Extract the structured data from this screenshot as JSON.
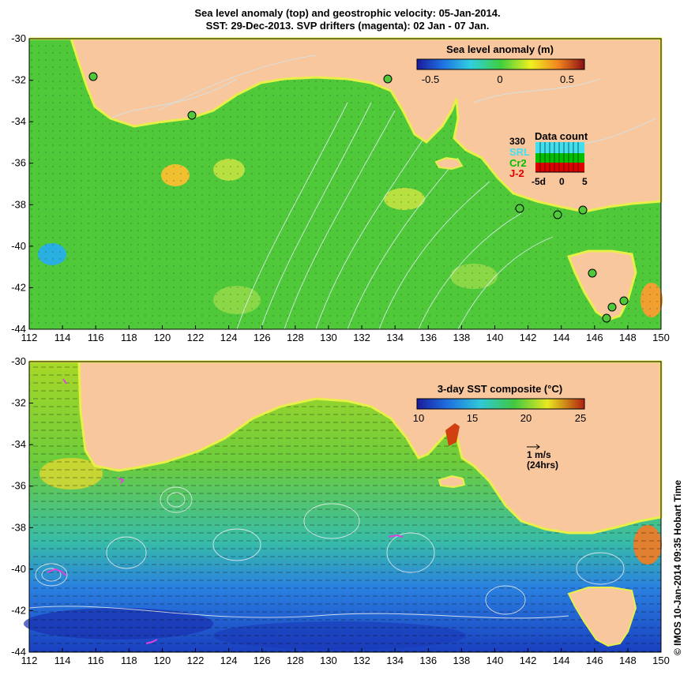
{
  "title": {
    "line1": "Sea level anomaly (top) and geostrophic velocity: 05-Jan-2014.",
    "line2": "SST: 29-Dec-2013. SVP drifters (magenta): 02 Jan - 07 Jan."
  },
  "axes": {
    "longitude_ticks": [
      "112",
      "114",
      "116",
      "118",
      "120",
      "122",
      "124",
      "126",
      "128",
      "130",
      "132",
      "134",
      "136",
      "138",
      "140",
      "142",
      "144",
      "146",
      "148",
      "150"
    ],
    "latitude_ticks": [
      "-30",
      "-32",
      "-34",
      "-36",
      "-38",
      "-40",
      "-42",
      "-44"
    ]
  },
  "top_panel": {
    "colorbar_title": "Sea level anomaly (m)",
    "colorbar_ticks": [
      "-0.5",
      "0",
      "0.5"
    ],
    "data_count": {
      "title": "Data count",
      "max_label": "330",
      "series": [
        "SRL",
        "Cr2",
        "J-2"
      ],
      "series_colors": [
        "#40e0f0",
        "#00c000",
        "#e00000"
      ],
      "axis_labels": [
        "-5d",
        "0",
        "5"
      ]
    }
  },
  "bottom_panel": {
    "colorbar_title": "3-day SST composite (°C)",
    "colorbar_ticks": [
      "10",
      "15",
      "20",
      "25"
    ],
    "vector_scale_label": "1 m/s",
    "vector_scale_sublabel": "(24hrs)"
  },
  "credit": "© IMOS 10-Jan-2014 09:35 Hobart Time",
  "colors": {
    "land": "#f9c79e",
    "ocean_mid": "#4fc83a",
    "text": "#000000"
  }
}
